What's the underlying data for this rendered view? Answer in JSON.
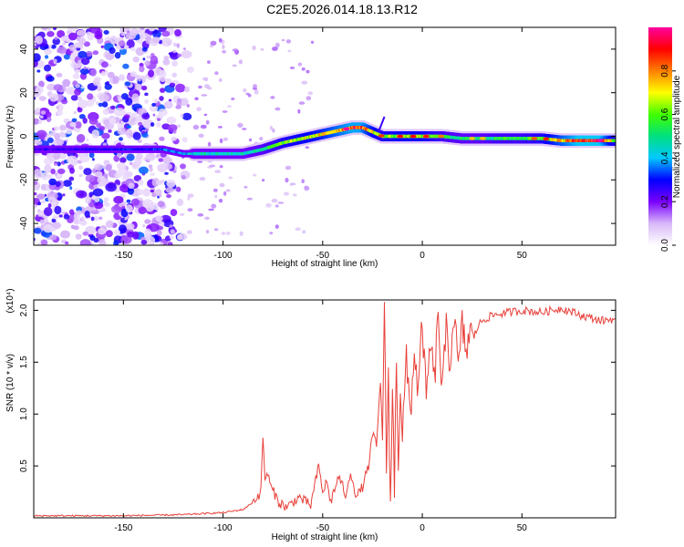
{
  "page_title": "C2E5.2026.014.18.13.R12",
  "colors": {
    "line": "#e8403a",
    "background": "#ffffff",
    "axis": "#000000"
  },
  "chart_data": [
    {
      "type": "heatmap",
      "title": "C2E5.2026.014.18.13.R12",
      "xlabel": "Height of straight line (km)",
      "ylabel": "Frequency (Hz)",
      "xlim": [
        -195,
        97
      ],
      "ylim": [
        -50,
        50
      ],
      "xticks": [
        -150,
        -100,
        -50,
        0,
        50
      ],
      "yticks": [
        -40,
        -20,
        0,
        20,
        40
      ],
      "colorbar": {
        "label": "Normalized spectral amplitude",
        "range": [
          0,
          1
        ],
        "ticks": [
          0.0,
          0.2,
          0.4,
          0.6,
          0.8
        ],
        "colormap": [
          "#ffffff",
          "#d8b8f8",
          "#7a00ff",
          "#0000ff",
          "#00c8ff",
          "#00e080",
          "#40ff00",
          "#ffff00",
          "#ff8000",
          "#ff0000",
          "#ff00a0"
        ]
      },
      "ridge": {
        "x": [
          -195,
          -180,
          -160,
          -150,
          -140,
          -130,
          -120,
          -110,
          -100,
          -90,
          -80,
          -70,
          -60,
          -50,
          -45,
          -40,
          -35,
          -30,
          -25,
          -20,
          -10,
          0,
          10,
          20,
          30,
          40,
          50,
          60,
          70,
          80,
          90,
          97
        ],
        "y": [
          -6,
          -6,
          -6,
          -6,
          -6,
          -6,
          -8,
          -8,
          -8,
          -8,
          -6,
          -3,
          -1,
          1,
          2,
          3,
          4,
          4,
          2,
          0,
          0,
          0,
          0,
          -1,
          -1,
          -1,
          -1,
          -1,
          -2,
          -2,
          -2,
          -2
        ],
        "amplitude": [
          0.25,
          0.25,
          0.3,
          0.3,
          0.3,
          0.35,
          0.4,
          0.45,
          0.45,
          0.45,
          0.5,
          0.6,
          0.65,
          0.7,
          0.75,
          0.8,
          0.85,
          0.85,
          0.7,
          0.6,
          0.65,
          0.65,
          0.55,
          0.5,
          0.5,
          0.55,
          0.55,
          0.6,
          0.75,
          0.9,
          0.9,
          0.6
        ],
        "noise_region_x": [
          -195,
          -115
        ]
      }
    },
    {
      "type": "line",
      "xlabel": "Height of straight line (km)",
      "ylabel": "SNR (10 * v/v)",
      "y_multiplier_label": "(x10⁴)",
      "xlim": [
        -195,
        97
      ],
      "ylim": [
        0,
        2.1
      ],
      "xticks": [
        -150,
        -100,
        -50,
        0,
        50
      ],
      "yticks": [
        0.5,
        1.0,
        1.5,
        2.0
      ],
      "ytick_labels": [
        "0.5",
        "1.0",
        "1.5",
        "2.0"
      ],
      "series": [
        {
          "name": "SNR",
          "color": "#e8403a",
          "x": [
            -195,
            -150,
            -120,
            -100,
            -90,
            -85,
            -81,
            -80,
            -79,
            -78,
            -76,
            -72,
            -68,
            -62,
            -56,
            -52,
            -50,
            -48,
            -46,
            -42,
            -38,
            -36,
            -33,
            -30,
            -27,
            -25,
            -23,
            -21,
            -20,
            -19,
            -18,
            -17,
            -16,
            -15,
            -14,
            -13,
            -12,
            -11,
            -10,
            -8,
            -6,
            -4,
            -2,
            0,
            2,
            4,
            6,
            8,
            10,
            12,
            14,
            16,
            18,
            20,
            22,
            24,
            26,
            28,
            30,
            35,
            40,
            50,
            60,
            70,
            80,
            90,
            97
          ],
          "y": [
            0.02,
            0.02,
            0.03,
            0.05,
            0.08,
            0.15,
            0.25,
            0.8,
            0.35,
            0.45,
            0.3,
            0.15,
            0.1,
            0.2,
            0.12,
            0.5,
            0.25,
            0.35,
            0.15,
            0.4,
            0.2,
            0.45,
            0.2,
            0.3,
            0.5,
            0.8,
            0.7,
            1.3,
            0.85,
            1.95,
            0.5,
            1.4,
            0.1,
            1.2,
            0.3,
            1.6,
            0.5,
            1.3,
            0.8,
            1.5,
            1.0,
            1.6,
            1.2,
            1.9,
            1.1,
            1.7,
            1.3,
            1.95,
            1.2,
            1.8,
            1.5,
            2.0,
            1.4,
            1.85,
            1.6,
            1.8,
            1.75,
            1.85,
            1.9,
            1.95,
            1.97,
            2.0,
            1.98,
            2.02,
            1.95,
            1.9,
            1.92
          ]
        }
      ]
    }
  ]
}
